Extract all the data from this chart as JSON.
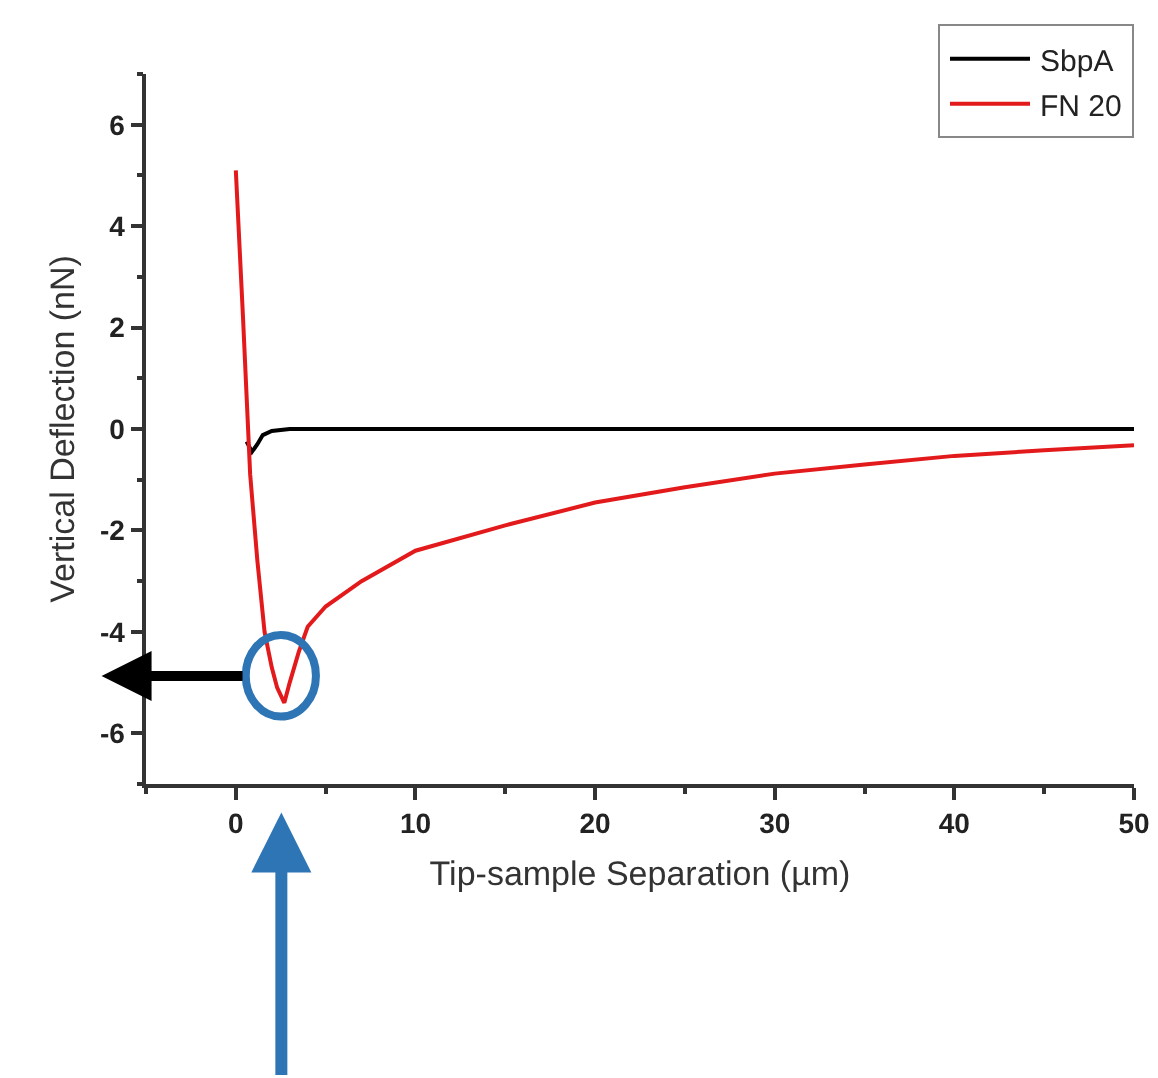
{
  "chart_data": {
    "type": "line",
    "xlabel": "Tip-sample Separation (µm)",
    "ylabel": "Vertical Deflection (nN)",
    "xlim": [
      -5,
      50
    ],
    "xticks": [
      0,
      10,
      20,
      30,
      40,
      50
    ],
    "ylim": [
      -7,
      7
    ],
    "yticks": [
      -6,
      -4,
      -2,
      0,
      2,
      4,
      6
    ],
    "legend": "top right",
    "series": [
      {
        "name": "SbpA",
        "color": "#000000",
        "x": [
          0.6,
          0.9,
          1.2,
          1.5,
          2,
          3,
          5,
          10,
          20,
          30,
          40,
          50
        ],
        "values": [
          -0.25,
          -0.45,
          -0.3,
          -0.12,
          -0.04,
          0,
          0,
          0,
          0,
          0,
          0,
          0
        ]
      },
      {
        "name": "FN 20",
        "color": "#e31a1c",
        "x": [
          0,
          0.4,
          0.8,
          1.2,
          1.6,
          2,
          2.3,
          2.7,
          3.0,
          3.5,
          4,
          5,
          7,
          10,
          15,
          20,
          25,
          30,
          35,
          40,
          45,
          50
        ],
        "values": [
          5.1,
          2.2,
          -0.9,
          -2.6,
          -4.0,
          -4.7,
          -5.1,
          -5.4,
          -5.0,
          -4.4,
          -3.9,
          -3.5,
          -3.0,
          -2.4,
          -1.9,
          -1.45,
          -1.15,
          -0.88,
          -0.7,
          -0.53,
          -0.42,
          -0.32
        ]
      }
    ]
  }
}
